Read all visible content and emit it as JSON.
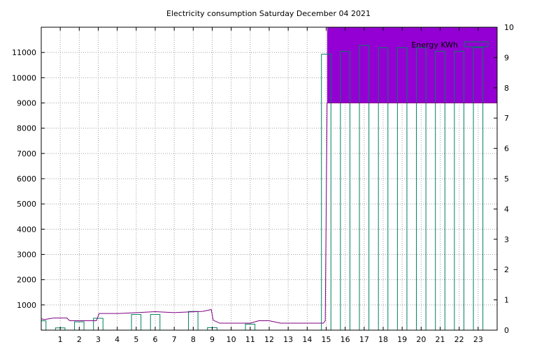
{
  "chart_data": {
    "type": "bar",
    "title": "Electricity consumption Saturday December 04 2021",
    "xlabel": "",
    "ylabel": "",
    "xlim": [
      0,
      24
    ],
    "ylim": [
      0,
      12000
    ],
    "y2lim": [
      0,
      10
    ],
    "y_ticks": [
      1000,
      2000,
      3000,
      4000,
      5000,
      6000,
      7000,
      8000,
      9000,
      10000,
      11000
    ],
    "y2_ticks": [
      0,
      1,
      2,
      3,
      4,
      5,
      6,
      7,
      8,
      9,
      10
    ],
    "x_ticks": [
      1,
      2,
      3,
      4,
      5,
      6,
      7,
      8,
      9,
      10,
      11,
      12,
      13,
      14,
      15,
      16,
      17,
      18,
      19,
      20,
      21,
      22,
      23
    ],
    "grid": true,
    "legend_position": "top-right",
    "colors": {
      "bars": "#008060",
      "line": "#800080",
      "fill": "#9400d3",
      "grid": "#a0a0a0"
    },
    "bar_series": {
      "name": "Energy KWh",
      "x": [
        0,
        1,
        2,
        3,
        4,
        5,
        6,
        7,
        8,
        9,
        10,
        11,
        12,
        13,
        14,
        15,
        16,
        17,
        18,
        19,
        20,
        21,
        22,
        23
      ],
      "values": [
        370,
        90,
        330,
        470,
        0,
        620,
        620,
        0,
        740,
        100,
        0,
        240,
        0,
        0,
        0,
        10930,
        11040,
        11280,
        11190,
        11190,
        11190,
        11050,
        11050,
        11190
      ]
    },
    "line_series": {
      "axis": "y2",
      "x": [
        0,
        0.15,
        0.65,
        1.35,
        1.5,
        2.1,
        2.9,
        3.05,
        4.1,
        5.05,
        6.0,
        7.0,
        7.7,
        8.5,
        8.95,
        9.05,
        9.4,
        10.0,
        11.0,
        11.45,
        12.0,
        12.6,
        13.0,
        14.0,
        14.85,
        14.95,
        15.05,
        24.0
      ],
      "values": [
        0.38,
        0.35,
        0.4,
        0.4,
        0.31,
        0.31,
        0.31,
        0.55,
        0.55,
        0.58,
        0.61,
        0.58,
        0.6,
        0.62,
        0.68,
        0.33,
        0.23,
        0.23,
        0.23,
        0.31,
        0.31,
        0.23,
        0.23,
        0.23,
        0.23,
        0.31,
        7.5,
        7.5
      ]
    }
  }
}
